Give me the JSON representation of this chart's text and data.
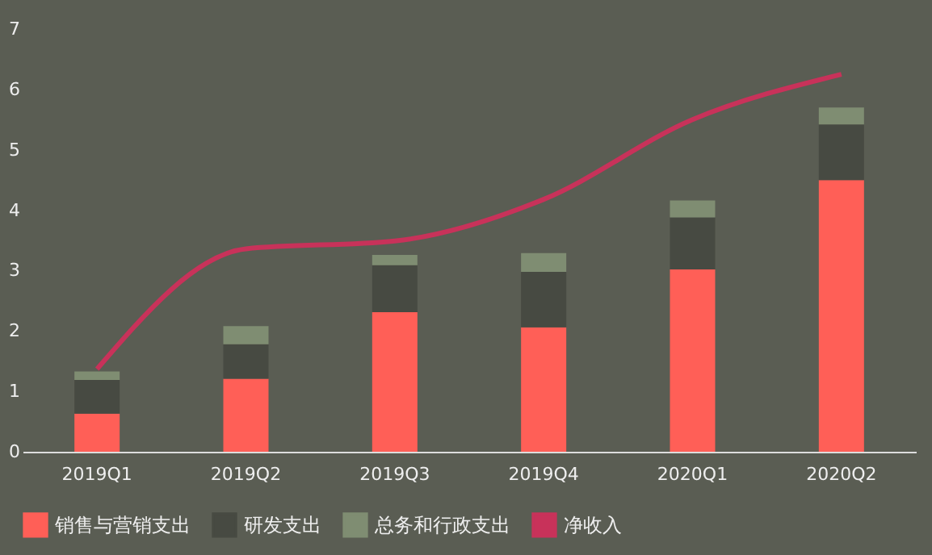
{
  "chart_data": {
    "type": "bar",
    "stacked": true,
    "categories": [
      "2019Q1",
      "2019Q2",
      "2019Q3",
      "2019Q4",
      "2020Q1",
      "2020Q2"
    ],
    "series": [
      {
        "name": "销售与营销支出",
        "color": "#ff5f57",
        "values": [
          0.63,
          1.21,
          2.31,
          2.06,
          3.02,
          4.5
        ]
      },
      {
        "name": "研发支出",
        "color": "#474a42",
        "values": [
          0.56,
          0.57,
          0.78,
          0.92,
          0.86,
          0.92
        ]
      },
      {
        "name": "总务和行政支出",
        "color": "#7f8d72",
        "values": [
          0.14,
          0.3,
          0.17,
          0.31,
          0.28,
          0.28
        ]
      },
      {
        "name": "净收入",
        "color": "#c8325a",
        "type": "line",
        "values": [
          1.37,
          3.36,
          3.49,
          4.18,
          5.5,
          6.25
        ]
      }
    ],
    "ylim": [
      0,
      7
    ],
    "yticks": [
      0,
      1,
      2,
      3,
      4,
      5,
      6,
      7
    ],
    "grid": false,
    "legend": "bottom"
  }
}
